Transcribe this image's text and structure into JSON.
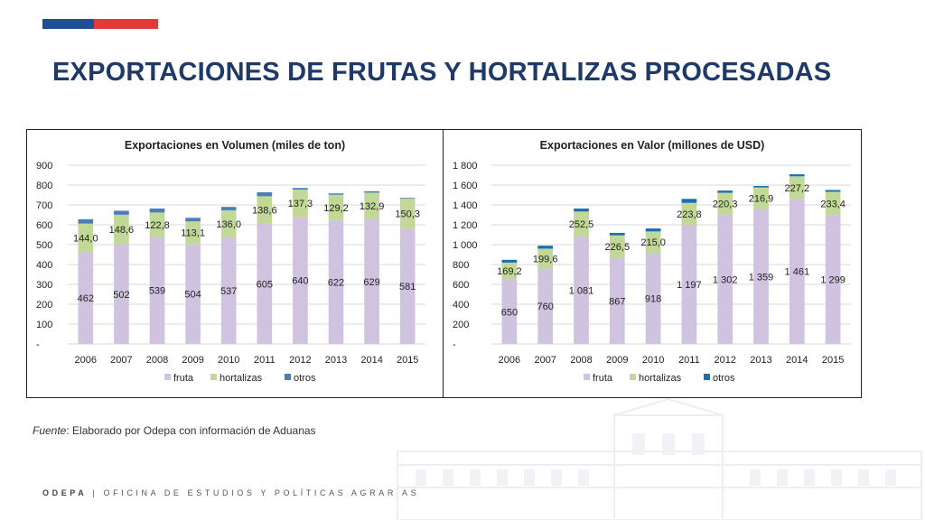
{
  "page": {
    "title": "EXPORTACIONES DE FRUTAS Y HORTALIZAS PROCESADAS",
    "source_prefix": "Fuente",
    "source_text": ": Elaborado por Odepa con información de Aduanas",
    "footer_org": "ODEPA",
    "footer_sep": "|",
    "footer_name": "OFICINA DE ESTUDIOS Y POLÍTICAS AGRARIAS"
  },
  "colors": {
    "flag_blue": "#1f4e96",
    "flag_red": "#e23a3a",
    "title": "#1f3a68",
    "fruta": "#cfc3e0",
    "hortalizas": "#c2d896",
    "otros_left": "#4a7eb8",
    "otros_right": "#1a6fb0"
  },
  "chart_data": [
    {
      "type": "bar",
      "stacked": true,
      "title": "Exportaciones en Volumen (miles de ton)",
      "categories": [
        "2006",
        "2007",
        "2008",
        "2009",
        "2010",
        "2011",
        "2012",
        "2013",
        "2014",
        "2015"
      ],
      "series": [
        {
          "name": "fruta",
          "values": [
            462,
            502,
            539,
            504,
            537,
            605,
            640,
            622,
            629,
            581
          ],
          "labels": [
            "462",
            "502",
            "539",
            "504",
            "537",
            "605",
            "640",
            "622",
            "629",
            "581"
          ]
        },
        {
          "name": "hortalizas",
          "values": [
            144.0,
            148.6,
            122.8,
            113.1,
            136.0,
            138.6,
            137.3,
            129.2,
            132.9,
            150.3
          ],
          "labels": [
            "144,0",
            "148,6",
            "122,8",
            "113,1",
            "136,0",
            "138,6",
            "137,3",
            "129,2",
            "132,9",
            "150,3"
          ]
        },
        {
          "name": "otros",
          "values": [
            22,
            20,
            20,
            18,
            17,
            20,
            8,
            7,
            7,
            4
          ]
        }
      ],
      "ylim": [
        0,
        900
      ],
      "yticks": [
        0,
        100,
        200,
        300,
        400,
        500,
        600,
        700,
        800,
        900
      ],
      "ytick_labels": [
        "-",
        "100",
        "200",
        "300",
        "400",
        "500",
        "600",
        "700",
        "800",
        "900"
      ],
      "grid": true,
      "legend": "bottom"
    },
    {
      "type": "bar",
      "stacked": true,
      "title": "Exportaciones en Valor (millones de USD)",
      "categories": [
        "2006",
        "2007",
        "2008",
        "2009",
        "2010",
        "2011",
        "2012",
        "2013",
        "2014",
        "2015"
      ],
      "series": [
        {
          "name": "fruta",
          "values": [
            650,
            760,
            1081,
            867,
            918,
            1197,
            1302,
            1359,
            1461,
            1299
          ],
          "labels": [
            "650",
            "760",
            "1 081",
            "867",
            "918",
            "1 197",
            "1 302",
            "1 359",
            "1 461",
            "1 299"
          ]
        },
        {
          "name": "hortalizas",
          "values": [
            169.2,
            199.6,
            252.5,
            226.5,
            215.0,
            223.8,
            220.3,
            216.9,
            227.2,
            233.4
          ],
          "labels": [
            "169,2",
            "199,6",
            "252,5",
            "226,5",
            "215,0",
            "223,8",
            "220,3",
            "216,9",
            "227,2",
            "233,4"
          ]
        },
        {
          "name": "otros",
          "values": [
            28,
            30,
            30,
            25,
            30,
            40,
            22,
            15,
            20,
            18
          ]
        }
      ],
      "ylim": [
        0,
        1800
      ],
      "yticks": [
        0,
        200,
        400,
        600,
        800,
        1000,
        1200,
        1400,
        1600,
        1800
      ],
      "ytick_labels": [
        "-",
        "200",
        "400",
        "600",
        "800",
        "1 000",
        "1 200",
        "1 400",
        "1 600",
        "1 800"
      ],
      "grid": true,
      "legend": "bottom"
    }
  ]
}
